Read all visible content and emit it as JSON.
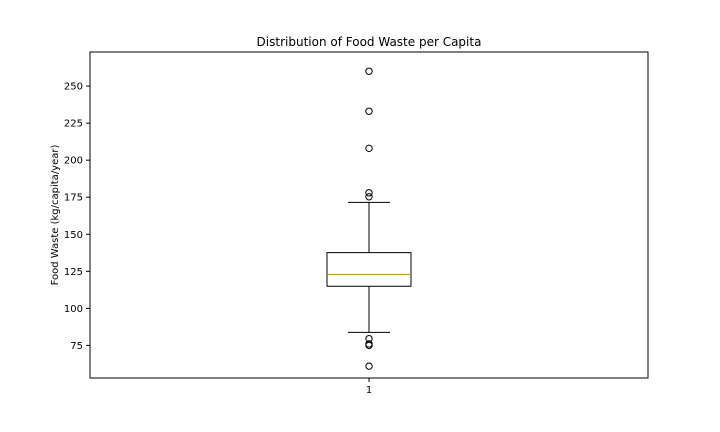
{
  "chart_data": {
    "type": "boxplot",
    "title": "Distribution of Food Waste per Capita",
    "xlabel": "",
    "ylabel": "Food Waste (kg/capita/year)",
    "categories": [
      "1"
    ],
    "ylim": [
      53,
      273
    ],
    "yticks": [
      75,
      100,
      125,
      150,
      175,
      200,
      225,
      250
    ],
    "boxes": [
      {
        "category": "1",
        "whisker_low": 83.8,
        "q1": 114.9,
        "median": 122.9,
        "q3": 137.6,
        "whisker_high": 171.5,
        "outliers": [
          260,
          233,
          208,
          178,
          175.3,
          79.5,
          76,
          75,
          61
        ]
      }
    ],
    "colors": {
      "box": "#000000",
      "median": "#c8963e",
      "outlier_edge": "#000000"
    },
    "grid": false,
    "legend": "none"
  }
}
